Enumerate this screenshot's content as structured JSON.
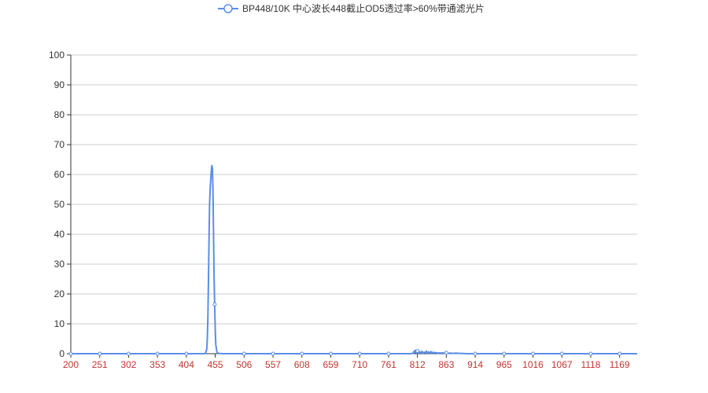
{
  "chart_data": {
    "type": "line",
    "title": "",
    "xlabel": "",
    "ylabel": "",
    "x_ticks": [
      200,
      251,
      302,
      353,
      404,
      455,
      506,
      557,
      608,
      659,
      710,
      761,
      812,
      863,
      914,
      965,
      1016,
      1067,
      1118,
      1169
    ],
    "xlim": [
      200,
      1200
    ],
    "ylim": [
      0,
      100
    ],
    "y_ticks": [
      0,
      10,
      20,
      30,
      40,
      50,
      60,
      70,
      80,
      90,
      100
    ],
    "grid": true,
    "legend_position": "top-center",
    "colors": {
      "series": "#5b8ee6",
      "x_tick": "#c23531",
      "y_tick": "#333333",
      "grid": "#cccccc",
      "axis": "#333333"
    },
    "series": [
      {
        "name": "BP448/10K 中心波长448截止OD5透过率>60%带通滤光片",
        "x": [
          200,
          251,
          302,
          353,
          404,
          430,
          436,
          438,
          440,
          441,
          442,
          443,
          444,
          445,
          446,
          447,
          448,
          449,
          450,
          451,
          452,
          453,
          454,
          455,
          456,
          458,
          460,
          470,
          506,
          557,
          608,
          659,
          710,
          761,
          800,
          805,
          806,
          807,
          808,
          809,
          810,
          811,
          812,
          814,
          816,
          818,
          820,
          822,
          824,
          826,
          828,
          830,
          832,
          834,
          836,
          838,
          840,
          842,
          845,
          848,
          850,
          853,
          856,
          860,
          863,
          866,
          870,
          875,
          880,
          885,
          890,
          900,
          914,
          930,
          950,
          965,
          1016,
          1067,
          1118,
          1169,
          1200
        ],
        "values": [
          0,
          0,
          0,
          0,
          0,
          0,
          0,
          0.2,
          1.5,
          5,
          12,
          24,
          38,
          50,
          55,
          58,
          61,
          63,
          62,
          55,
          40,
          25,
          16.5,
          8,
          3,
          0.6,
          0.1,
          0,
          0,
          0,
          0,
          0,
          0,
          0,
          0,
          0.2,
          0.8,
          0.3,
          1.1,
          0.4,
          1.0,
          0.2,
          0.9,
          0.1,
          0.6,
          0.2,
          0.8,
          0.1,
          0.5,
          0.3,
          0.9,
          0.1,
          0.6,
          0.2,
          0.7,
          0.1,
          0.5,
          0.2,
          0.4,
          0.1,
          0.3,
          0.2,
          0.3,
          0.1,
          0.3,
          0.1,
          0.2,
          0.1,
          0.2,
          0.1,
          0.1,
          0,
          0,
          0,
          0,
          0,
          0,
          0,
          0,
          0,
          0
        ],
        "marked_x": [
          200,
          251,
          302,
          353,
          404,
          454,
          506,
          557,
          608,
          659,
          710,
          761,
          812,
          863,
          914,
          965,
          1016,
          1067,
          1118,
          1169
        ]
      }
    ]
  }
}
